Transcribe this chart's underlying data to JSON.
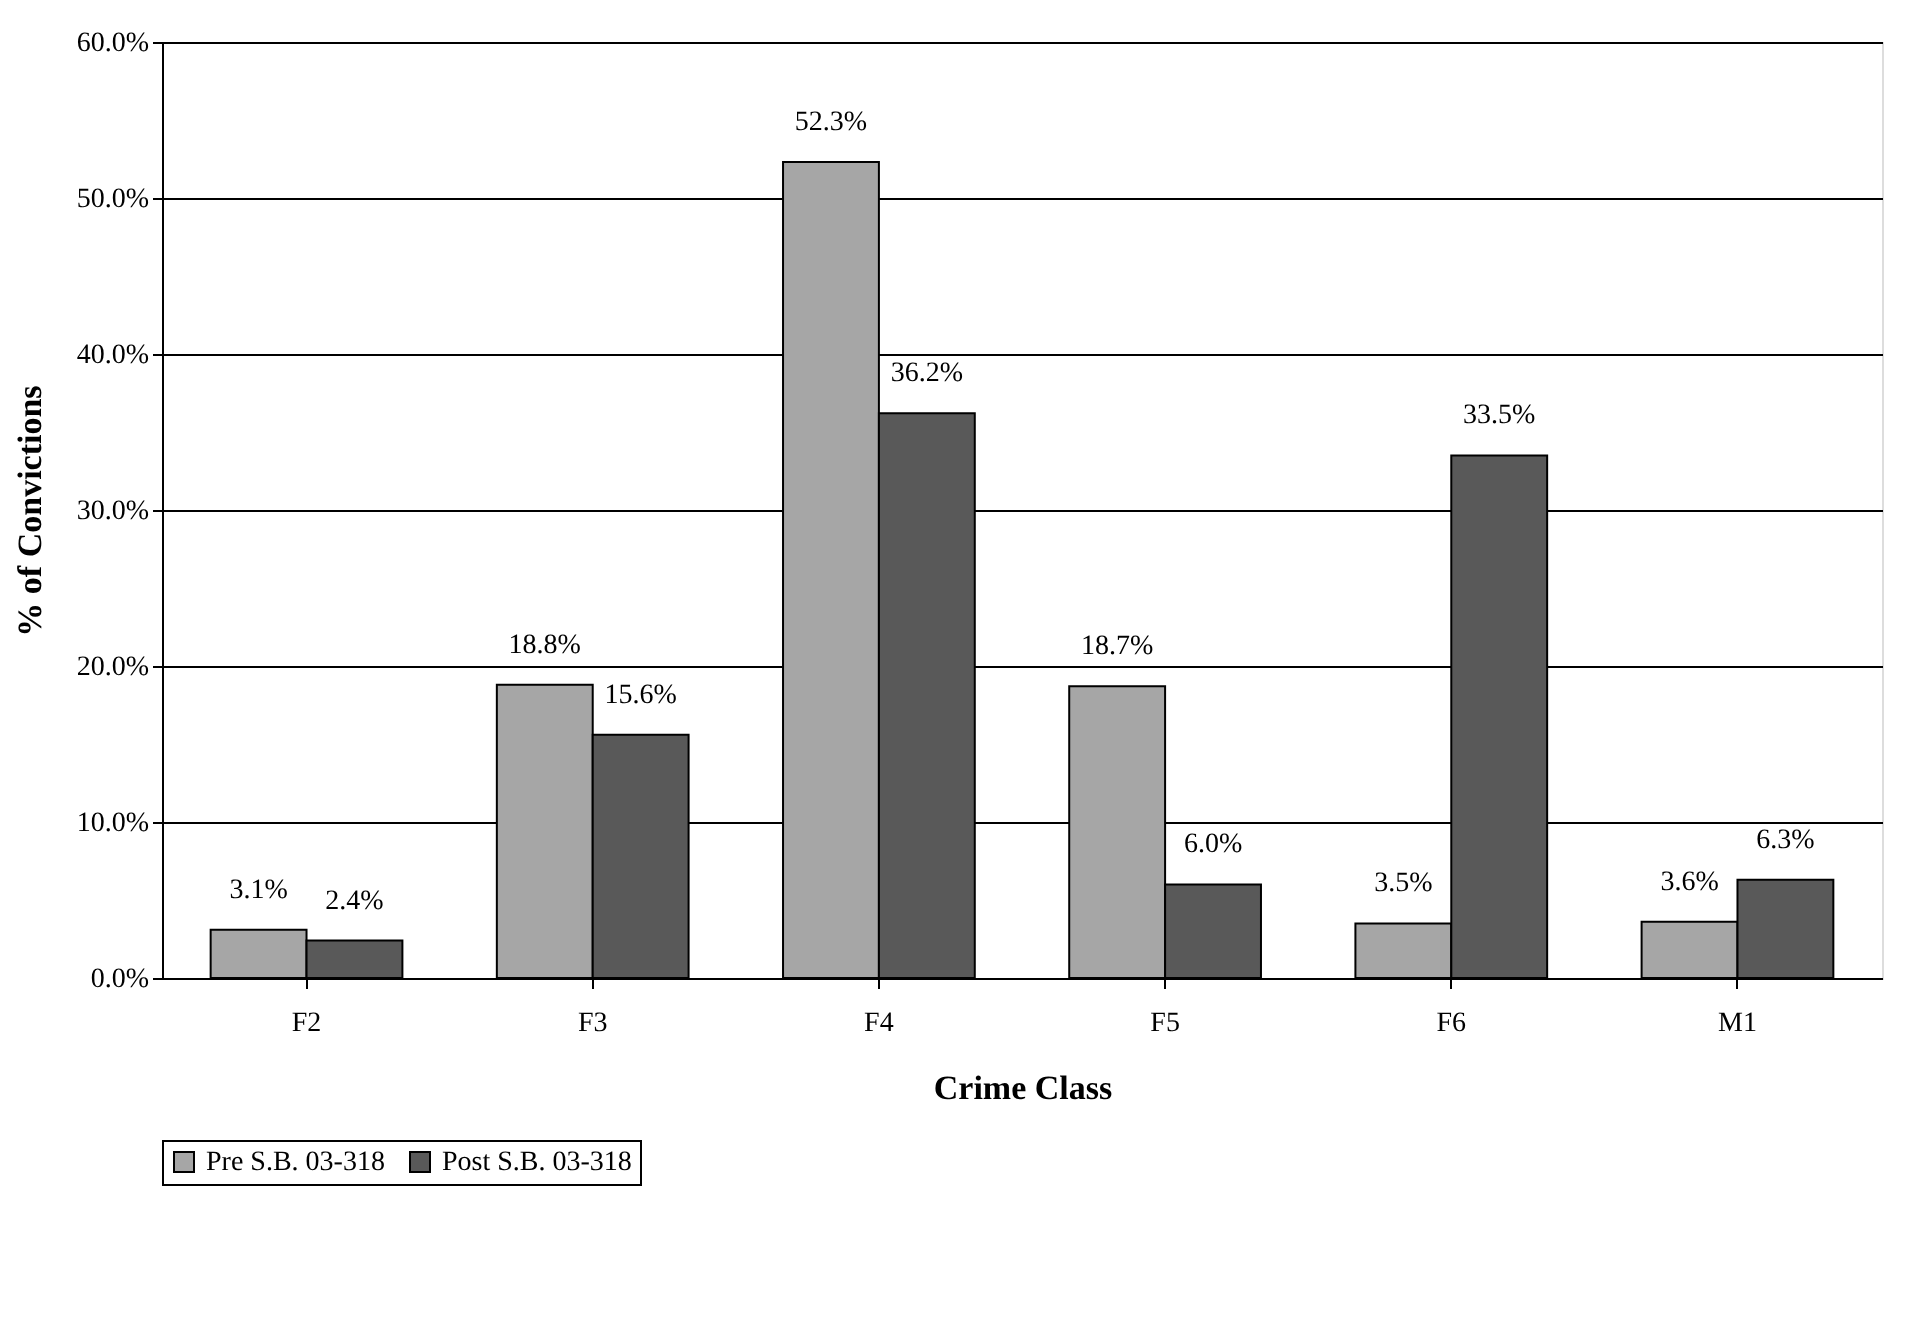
{
  "chart_data": {
    "type": "bar",
    "xlabel": "Crime Class",
    "ylabel": "% of Convictions",
    "categories": [
      "F2",
      "F3",
      "F4",
      "F5",
      "F6",
      "M1"
    ],
    "series": [
      {
        "name": "Pre S.B. 03-318",
        "color": "#a6a6a6",
        "values": [
          3.1,
          18.8,
          52.3,
          18.7,
          3.5,
          3.6
        ],
        "value_labels": [
          "3.1%",
          "18.8%",
          "52.3%",
          "18.7%",
          "3.5%",
          "3.6%"
        ]
      },
      {
        "name": "Post S.B. 03-318",
        "color": "#595959",
        "values": [
          2.4,
          15.6,
          36.2,
          6.0,
          33.5,
          6.3
        ],
        "value_labels": [
          "2.4%",
          "15.6%",
          "36.2%",
          "6.0%",
          "33.5%",
          "6.3%"
        ]
      }
    ],
    "ylim": [
      0,
      60
    ],
    "yticks": [
      {
        "value": 0,
        "label": "0.0%"
      },
      {
        "value": 10,
        "label": "10.0%"
      },
      {
        "value": 20,
        "label": "20.0%"
      },
      {
        "value": 30,
        "label": "30.0%"
      },
      {
        "value": 40,
        "label": "40.0%"
      },
      {
        "value": 50,
        "label": "50.0%"
      },
      {
        "value": 60,
        "label": "60.0%"
      }
    ],
    "grid": "y",
    "legend": "bottom"
  }
}
